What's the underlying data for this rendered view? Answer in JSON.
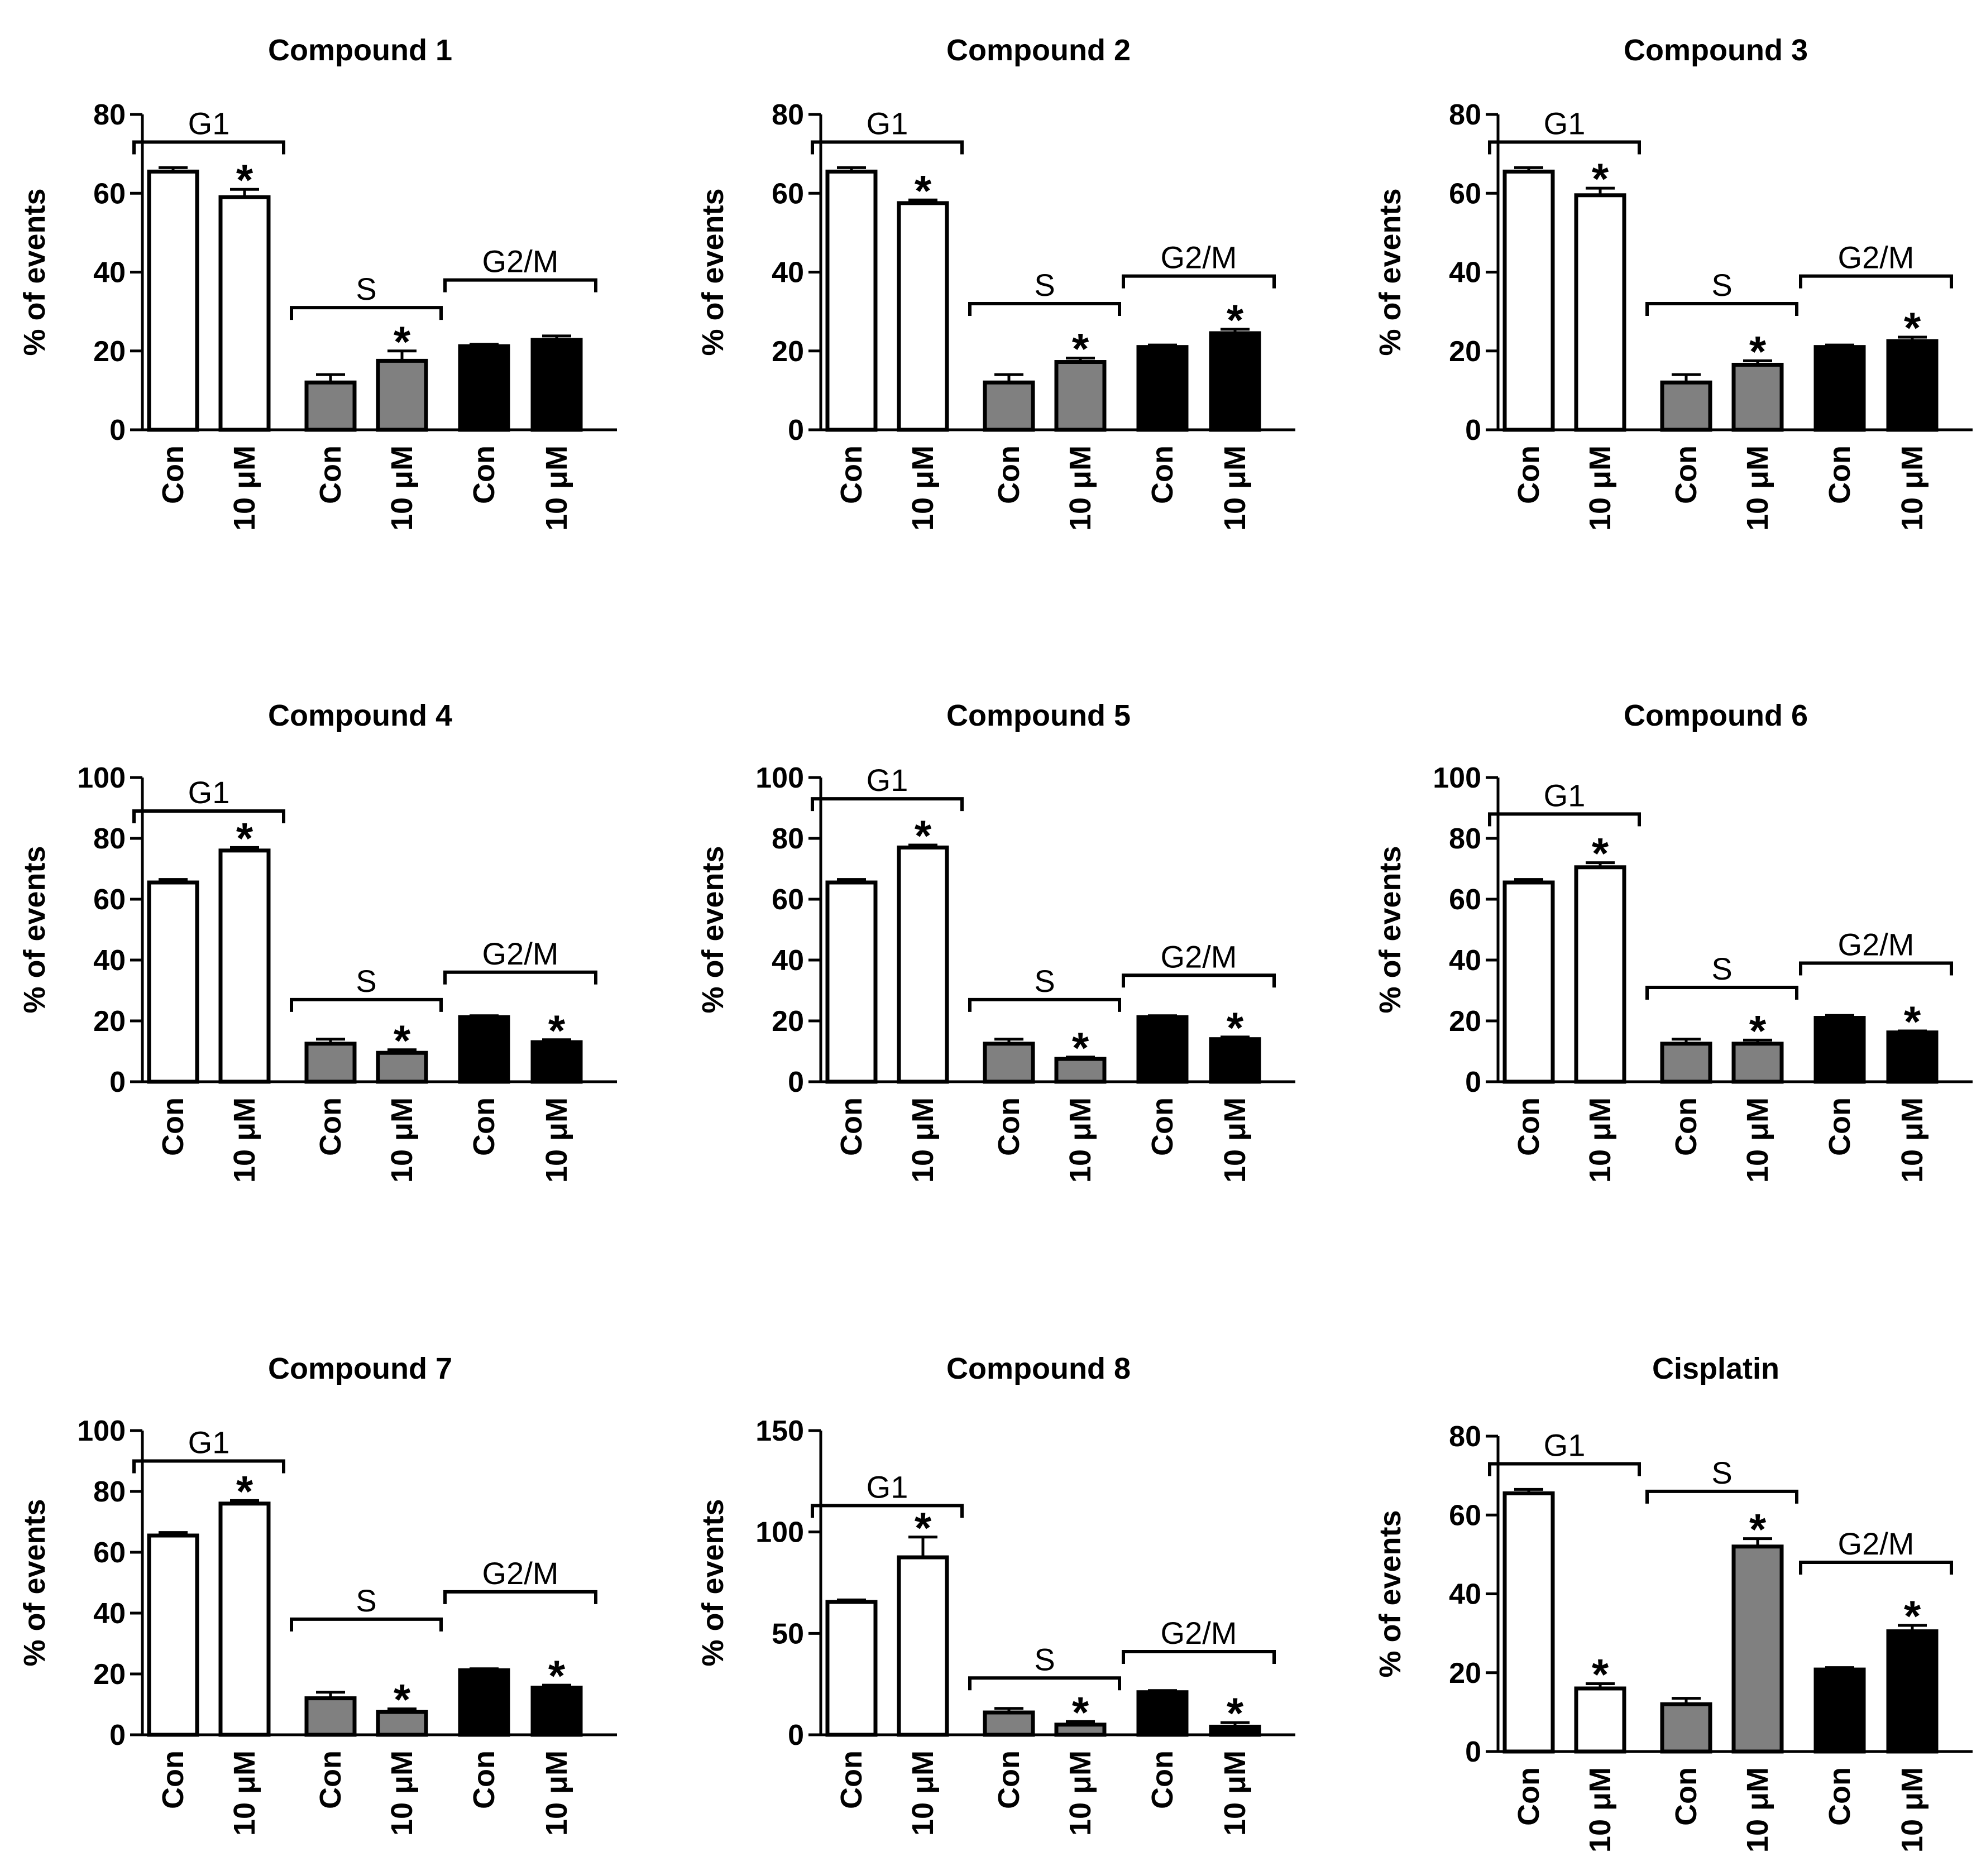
{
  "figure": {
    "description_type": "3x3 grid of bar charts",
    "colors": {
      "G1": "#ffffff",
      "S": "#808080",
      "G2/M": "#000000",
      "stroke": "#000000"
    }
  },
  "chart_data": [
    {
      "type": "bar",
      "title": "Compound 1",
      "ylabel": "% of events",
      "ylim": [
        0,
        80
      ],
      "yticks": [
        0,
        20,
        40,
        60,
        80
      ],
      "categories": [
        "Con",
        "10 μM",
        "Con",
        "10 μM",
        "Con",
        "10 μM"
      ],
      "groups": [
        "G1",
        "G1",
        "S",
        "S",
        "G2/M",
        "G2/M"
      ],
      "values": [
        65.5,
        59,
        12,
        17.5,
        21.2,
        22.8
      ],
      "errors": [
        1,
        2,
        2,
        2.5,
        0.5,
        1
      ],
      "significant": [
        false,
        true,
        false,
        true,
        false,
        false
      ],
      "bracket_labels": [
        "G1",
        "S",
        "G2/M"
      ],
      "bracket_levels": [
        73,
        31,
        38
      ],
      "significance_marker": "*"
    },
    {
      "type": "bar",
      "title": "Compound 2",
      "ylabel": "% of events",
      "ylim": [
        0,
        80
      ],
      "yticks": [
        0,
        20,
        40,
        60,
        80
      ],
      "categories": [
        "Con",
        "10 μM",
        "Con",
        "10 μM",
        "Con",
        "10 μM"
      ],
      "groups": [
        "G1",
        "G1",
        "S",
        "S",
        "G2/M",
        "G2/M"
      ],
      "values": [
        65.5,
        57.5,
        12,
        17.2,
        21,
        24.5
      ],
      "errors": [
        1,
        0.8,
        2,
        1,
        0.5,
        1
      ],
      "significant": [
        false,
        true,
        false,
        true,
        false,
        true
      ],
      "bracket_labels": [
        "G1",
        "S",
        "G2/M"
      ],
      "bracket_levels": [
        73,
        32,
        39
      ],
      "significance_marker": "*"
    },
    {
      "type": "bar",
      "title": "Compound 3",
      "ylabel": "% of events",
      "ylim": [
        0,
        80
      ],
      "yticks": [
        0,
        20,
        40,
        60,
        80
      ],
      "categories": [
        "Con",
        "10 μM",
        "Con",
        "10 μM",
        "Con",
        "10 μM"
      ],
      "groups": [
        "G1",
        "G1",
        "S",
        "S",
        "G2/M",
        "G2/M"
      ],
      "values": [
        65.5,
        59.5,
        12,
        16.5,
        21,
        22.5
      ],
      "errors": [
        1,
        1.8,
        2,
        1,
        0.5,
        1
      ],
      "significant": [
        false,
        true,
        false,
        true,
        false,
        true
      ],
      "bracket_labels": [
        "G1",
        "S",
        "G2/M"
      ],
      "bracket_levels": [
        73,
        32,
        39
      ],
      "significance_marker": "*"
    },
    {
      "type": "bar",
      "title": "Compound 4",
      "ylabel": "% of events",
      "ylim": [
        0,
        100
      ],
      "yticks": [
        0,
        20,
        40,
        60,
        80,
        100
      ],
      "categories": [
        "Con",
        "10 μM",
        "Con",
        "10 μM",
        "Con",
        "10 μM"
      ],
      "groups": [
        "G1",
        "G1",
        "S",
        "S",
        "G2/M",
        "G2/M"
      ],
      "values": [
        65.5,
        76,
        12.5,
        9.5,
        21.2,
        13
      ],
      "errors": [
        1,
        1,
        1.5,
        1,
        0.5,
        0.8
      ],
      "significant": [
        false,
        true,
        false,
        true,
        false,
        true
      ],
      "bracket_labels": [
        "G1",
        "S",
        "G2/M"
      ],
      "bracket_levels": [
        89,
        27,
        36
      ],
      "significance_marker": "*"
    },
    {
      "type": "bar",
      "title": "Compound 5",
      "ylabel": "% of events",
      "ylim": [
        0,
        100
      ],
      "yticks": [
        0,
        20,
        40,
        60,
        80,
        100
      ],
      "categories": [
        "Con",
        "10 μM",
        "Con",
        "10 μM",
        "Con",
        "10 μM"
      ],
      "groups": [
        "G1",
        "G1",
        "S",
        "S",
        "G2/M",
        "G2/M"
      ],
      "values": [
        65.5,
        77,
        12.5,
        7.5,
        21.2,
        14
      ],
      "errors": [
        1,
        0.8,
        1.5,
        0.6,
        0.5,
        0.7
      ],
      "significant": [
        false,
        true,
        false,
        true,
        false,
        true
      ],
      "bracket_labels": [
        "G1",
        "S",
        "G2/M"
      ],
      "bracket_levels": [
        93,
        27,
        35
      ],
      "significance_marker": "*"
    },
    {
      "type": "bar",
      "title": "Compound 6",
      "ylabel": "% of events",
      "ylim": [
        0,
        100
      ],
      "yticks": [
        0,
        20,
        40,
        60,
        80,
        100
      ],
      "categories": [
        "Con",
        "10 μM",
        "Con",
        "10 μM",
        "Con",
        "10 μM"
      ],
      "groups": [
        "G1",
        "G1",
        "S",
        "S",
        "G2/M",
        "G2/M"
      ],
      "values": [
        65.5,
        70.5,
        12.5,
        12.5,
        21,
        16.2
      ],
      "errors": [
        1,
        1.5,
        1.5,
        1.2,
        0.8,
        0.5
      ],
      "significant": [
        false,
        true,
        false,
        true,
        false,
        true
      ],
      "bracket_labels": [
        "G1",
        "S",
        "G2/M"
      ],
      "bracket_levels": [
        88,
        31,
        39
      ],
      "significance_marker": "*"
    },
    {
      "type": "bar",
      "title": "Compound 7",
      "ylabel": "% of events",
      "ylim": [
        0,
        100
      ],
      "yticks": [
        0,
        20,
        40,
        60,
        80,
        100
      ],
      "categories": [
        "Con",
        "10 μM",
        "Con",
        "10 μM",
        "Con",
        "10 μM"
      ],
      "groups": [
        "G1",
        "G1",
        "S",
        "S",
        "G2/M",
        "G2/M"
      ],
      "values": [
        65.5,
        76,
        12,
        7.5,
        21.2,
        15.5
      ],
      "errors": [
        1,
        1,
        2,
        1,
        0.5,
        0.8
      ],
      "significant": [
        false,
        true,
        false,
        true,
        false,
        true
      ],
      "bracket_labels": [
        "G1",
        "S",
        "G2/M"
      ],
      "bracket_levels": [
        90,
        38,
        47
      ],
      "significance_marker": "*"
    },
    {
      "type": "bar",
      "title": "Compound 8",
      "ylabel": "% of events",
      "ylim": [
        0,
        150
      ],
      "yticks": [
        0,
        50,
        100,
        150
      ],
      "categories": [
        "Con",
        "10 μM",
        "Con",
        "10 μM",
        "Con",
        "10 μM"
      ],
      "groups": [
        "G1",
        "G1",
        "S",
        "S",
        "G2/M",
        "G2/M"
      ],
      "values": [
        65.5,
        87.5,
        11,
        5,
        21,
        4
      ],
      "errors": [
        1,
        10,
        2,
        1.5,
        0.8,
        2
      ],
      "significant": [
        false,
        true,
        false,
        true,
        false,
        true
      ],
      "bracket_labels": [
        "G1",
        "S",
        "G2/M"
      ],
      "bracket_levels": [
        113,
        28,
        41
      ],
      "significance_marker": "*"
    },
    {
      "type": "bar",
      "title": "Cisplatin",
      "ylabel": "% of events",
      "ylim": [
        0,
        80
      ],
      "yticks": [
        0,
        20,
        40,
        60,
        80
      ],
      "categories": [
        "Con",
        "10 μM",
        "Con",
        "10 μM",
        "Con",
        "10 μM"
      ],
      "groups": [
        "G1",
        "G1",
        "S",
        "S",
        "G2/M",
        "G2/M"
      ],
      "values": [
        65.5,
        16,
        12,
        52,
        20.8,
        30.5
      ],
      "errors": [
        1,
        1.2,
        1.5,
        2,
        0.5,
        1.5
      ],
      "significant": [
        false,
        true,
        false,
        true,
        false,
        true
      ],
      "bracket_labels": [
        "G1",
        "S",
        "G2/M"
      ],
      "bracket_levels": [
        73,
        66,
        48
      ],
      "significance_marker": "*"
    }
  ]
}
